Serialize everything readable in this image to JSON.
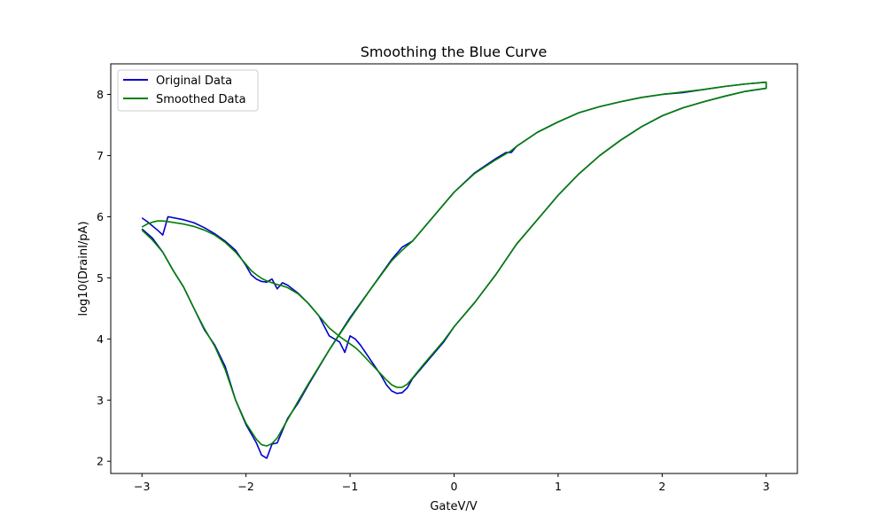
{
  "chart_data": {
    "type": "line",
    "title": "Smoothing the Blue Curve",
    "xlabel": "GateV/V",
    "ylabel": "log10(DrainI/pA)",
    "xlim": [
      -3.3,
      3.3
    ],
    "ylim": [
      1.8,
      8.5
    ],
    "xticks": [
      {
        "value": -3,
        "label": "−3"
      },
      {
        "value": -2,
        "label": "−2"
      },
      {
        "value": -1,
        "label": "−1"
      },
      {
        "value": 0,
        "label": "0"
      },
      {
        "value": 1,
        "label": "1"
      },
      {
        "value": 2,
        "label": "2"
      },
      {
        "value": 3,
        "label": "3"
      }
    ],
    "yticks": [
      {
        "value": 2,
        "label": "2"
      },
      {
        "value": 3,
        "label": "3"
      },
      {
        "value": 4,
        "label": "4"
      },
      {
        "value": 5,
        "label": "5"
      },
      {
        "value": 6,
        "label": "6"
      },
      {
        "value": 7,
        "label": "7"
      },
      {
        "value": 8,
        "label": "8"
      }
    ],
    "grid": false,
    "legend": {
      "position": "top-left"
    },
    "series": [
      {
        "name": "Original Data",
        "color": "#0000cc",
        "points": [
          [
            -3.0,
            5.98
          ],
          [
            -2.95,
            5.92
          ],
          [
            -2.9,
            5.85
          ],
          [
            -2.85,
            5.78
          ],
          [
            -2.8,
            5.7
          ],
          [
            -2.75,
            6.0
          ],
          [
            -2.6,
            5.95
          ],
          [
            -2.5,
            5.9
          ],
          [
            -2.4,
            5.82
          ],
          [
            -2.3,
            5.72
          ],
          [
            -2.2,
            5.6
          ],
          [
            -2.1,
            5.45
          ],
          [
            -2.0,
            5.2
          ],
          [
            -1.95,
            5.05
          ],
          [
            -1.9,
            4.98
          ],
          [
            -1.85,
            4.94
          ],
          [
            -1.8,
            4.93
          ],
          [
            -1.75,
            4.98
          ],
          [
            -1.7,
            4.82
          ],
          [
            -1.65,
            4.92
          ],
          [
            -1.6,
            4.88
          ],
          [
            -1.5,
            4.75
          ],
          [
            -1.4,
            4.58
          ],
          [
            -1.3,
            4.38
          ],
          [
            -1.2,
            4.05
          ],
          [
            -1.1,
            3.95
          ],
          [
            -1.05,
            3.78
          ],
          [
            -1.0,
            4.05
          ],
          [
            -0.95,
            4.0
          ],
          [
            -0.9,
            3.9
          ],
          [
            -0.8,
            3.65
          ],
          [
            -0.7,
            3.4
          ],
          [
            -0.65,
            3.25
          ],
          [
            -0.6,
            3.15
          ],
          [
            -0.55,
            3.11
          ],
          [
            -0.5,
            3.12
          ],
          [
            -0.45,
            3.2
          ],
          [
            -0.4,
            3.35
          ],
          [
            -0.3,
            3.55
          ],
          [
            -0.2,
            3.75
          ],
          [
            -0.1,
            3.95
          ],
          [
            0.0,
            4.2
          ],
          [
            0.2,
            4.6
          ],
          [
            0.4,
            5.05
          ],
          [
            0.5,
            5.3
          ],
          [
            0.6,
            5.55
          ],
          [
            0.8,
            5.95
          ],
          [
            1.0,
            6.35
          ],
          [
            1.2,
            6.7
          ],
          [
            1.4,
            7.0
          ],
          [
            1.6,
            7.25
          ],
          [
            1.8,
            7.47
          ],
          [
            2.0,
            7.65
          ],
          [
            2.2,
            7.78
          ],
          [
            2.4,
            7.88
          ],
          [
            2.6,
            7.97
          ],
          [
            2.8,
            8.05
          ],
          [
            3.0,
            8.1
          ],
          [
            3.0,
            8.2
          ],
          [
            2.8,
            8.17
          ],
          [
            2.6,
            8.13
          ],
          [
            2.4,
            8.08
          ],
          [
            2.2,
            8.03
          ],
          [
            2.0,
            8.0
          ],
          [
            1.8,
            7.95
          ],
          [
            1.6,
            7.88
          ],
          [
            1.4,
            7.8
          ],
          [
            1.2,
            7.7
          ],
          [
            1.0,
            7.55
          ],
          [
            0.8,
            7.38
          ],
          [
            0.6,
            7.15
          ],
          [
            0.55,
            7.05
          ],
          [
            0.5,
            7.05
          ],
          [
            0.4,
            6.95
          ],
          [
            0.2,
            6.72
          ],
          [
            0.0,
            6.4
          ],
          [
            -0.2,
            6.0
          ],
          [
            -0.4,
            5.6
          ],
          [
            -0.5,
            5.5
          ],
          [
            -0.6,
            5.3
          ],
          [
            -0.8,
            4.82
          ],
          [
            -1.0,
            4.35
          ],
          [
            -1.2,
            3.82
          ],
          [
            -1.4,
            3.25
          ],
          [
            -1.5,
            2.95
          ],
          [
            -1.6,
            2.7
          ],
          [
            -1.7,
            2.3
          ],
          [
            -1.75,
            2.28
          ],
          [
            -1.8,
            2.05
          ],
          [
            -1.85,
            2.1
          ],
          [
            -1.9,
            2.3
          ],
          [
            -2.0,
            2.6
          ],
          [
            -2.1,
            3.0
          ],
          [
            -2.2,
            3.55
          ],
          [
            -2.3,
            3.9
          ],
          [
            -2.4,
            4.15
          ],
          [
            -2.5,
            4.5
          ],
          [
            -2.6,
            4.85
          ],
          [
            -2.7,
            5.12
          ],
          [
            -2.8,
            5.42
          ],
          [
            -2.9,
            5.65
          ],
          [
            -3.0,
            5.8
          ]
        ]
      },
      {
        "name": "Smoothed Data",
        "color": "#007f00",
        "points": [
          [
            -3.0,
            5.83
          ],
          [
            -2.95,
            5.88
          ],
          [
            -2.9,
            5.91
          ],
          [
            -2.85,
            5.93
          ],
          [
            -2.8,
            5.93
          ],
          [
            -2.75,
            5.92
          ],
          [
            -2.6,
            5.88
          ],
          [
            -2.5,
            5.84
          ],
          [
            -2.4,
            5.78
          ],
          [
            -2.3,
            5.7
          ],
          [
            -2.2,
            5.58
          ],
          [
            -2.1,
            5.42
          ],
          [
            -2.0,
            5.22
          ],
          [
            -1.95,
            5.12
          ],
          [
            -1.9,
            5.05
          ],
          [
            -1.85,
            4.99
          ],
          [
            -1.8,
            4.95
          ],
          [
            -1.75,
            4.92
          ],
          [
            -1.7,
            4.89
          ],
          [
            -1.65,
            4.87
          ],
          [
            -1.6,
            4.84
          ],
          [
            -1.5,
            4.74
          ],
          [
            -1.4,
            4.58
          ],
          [
            -1.3,
            4.38
          ],
          [
            -1.2,
            4.18
          ],
          [
            -1.1,
            4.04
          ],
          [
            -1.05,
            3.98
          ],
          [
            -1.0,
            3.92
          ],
          [
            -0.95,
            3.86
          ],
          [
            -0.9,
            3.78
          ],
          [
            -0.8,
            3.6
          ],
          [
            -0.7,
            3.42
          ],
          [
            -0.65,
            3.33
          ],
          [
            -0.6,
            3.25
          ],
          [
            -0.55,
            3.21
          ],
          [
            -0.5,
            3.21
          ],
          [
            -0.45,
            3.26
          ],
          [
            -0.4,
            3.36
          ],
          [
            -0.3,
            3.57
          ],
          [
            -0.2,
            3.77
          ],
          [
            -0.1,
            3.97
          ],
          [
            0.0,
            4.2
          ],
          [
            0.2,
            4.6
          ],
          [
            0.4,
            5.05
          ],
          [
            0.5,
            5.3
          ],
          [
            0.6,
            5.55
          ],
          [
            0.8,
            5.95
          ],
          [
            1.0,
            6.35
          ],
          [
            1.2,
            6.7
          ],
          [
            1.4,
            7.0
          ],
          [
            1.6,
            7.25
          ],
          [
            1.8,
            7.47
          ],
          [
            2.0,
            7.65
          ],
          [
            2.2,
            7.78
          ],
          [
            2.4,
            7.88
          ],
          [
            2.6,
            7.97
          ],
          [
            2.8,
            8.05
          ],
          [
            3.0,
            8.1
          ],
          [
            3.0,
            8.2
          ],
          [
            2.8,
            8.17
          ],
          [
            2.6,
            8.13
          ],
          [
            2.4,
            8.08
          ],
          [
            2.2,
            8.04
          ],
          [
            2.0,
            8.0
          ],
          [
            1.8,
            7.95
          ],
          [
            1.6,
            7.88
          ],
          [
            1.4,
            7.8
          ],
          [
            1.2,
            7.7
          ],
          [
            1.0,
            7.55
          ],
          [
            0.8,
            7.38
          ],
          [
            0.6,
            7.15
          ],
          [
            0.55,
            7.08
          ],
          [
            0.5,
            7.03
          ],
          [
            0.4,
            6.93
          ],
          [
            0.2,
            6.71
          ],
          [
            0.0,
            6.4
          ],
          [
            -0.2,
            6.0
          ],
          [
            -0.4,
            5.6
          ],
          [
            -0.5,
            5.45
          ],
          [
            -0.6,
            5.28
          ],
          [
            -0.8,
            4.82
          ],
          [
            -1.0,
            4.33
          ],
          [
            -1.2,
            3.82
          ],
          [
            -1.4,
            3.27
          ],
          [
            -1.5,
            2.98
          ],
          [
            -1.6,
            2.68
          ],
          [
            -1.7,
            2.38
          ],
          [
            -1.75,
            2.29
          ],
          [
            -1.8,
            2.25
          ],
          [
            -1.85,
            2.27
          ],
          [
            -1.9,
            2.36
          ],
          [
            -2.0,
            2.62
          ],
          [
            -2.1,
            3.0
          ],
          [
            -2.2,
            3.5
          ],
          [
            -2.3,
            3.88
          ],
          [
            -2.4,
            4.17
          ],
          [
            -2.5,
            4.5
          ],
          [
            -2.6,
            4.85
          ],
          [
            -2.7,
            5.12
          ],
          [
            -2.8,
            5.42
          ],
          [
            -2.9,
            5.62
          ],
          [
            -3.0,
            5.78
          ]
        ]
      }
    ]
  }
}
